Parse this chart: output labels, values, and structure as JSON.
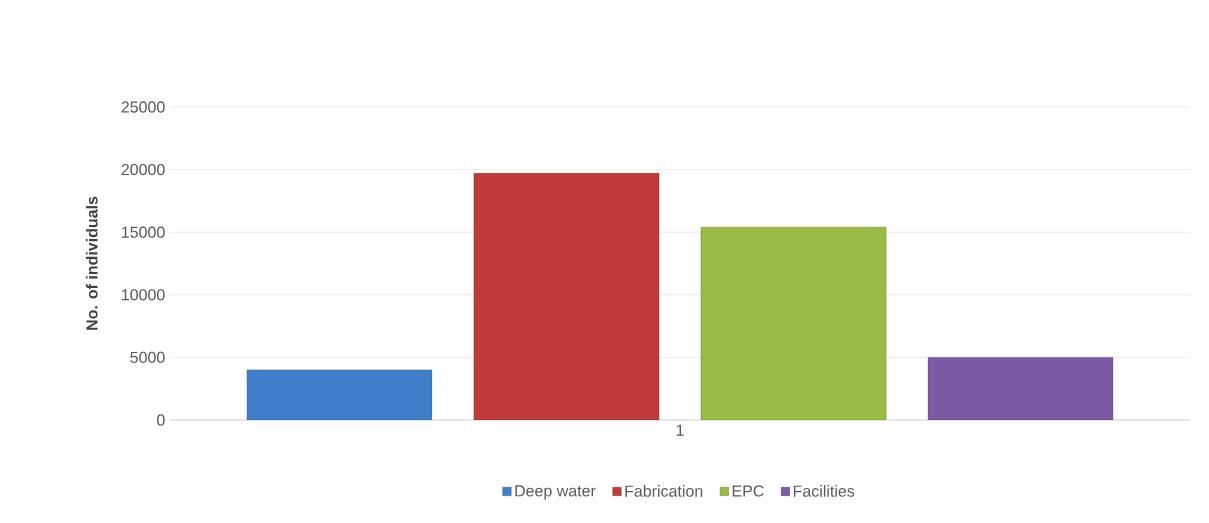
{
  "chart_data": {
    "type": "bar",
    "ylabel": "No. of individuals",
    "categories": [
      "1"
    ],
    "series": [
      {
        "name": "Deep water",
        "color": "#3f7fc9",
        "values": [
          4000
        ]
      },
      {
        "name": "Fabrication",
        "color": "#c03a38",
        "values": [
          19700
        ]
      },
      {
        "name": "EPC",
        "color": "#97bd45",
        "values": [
          15400
        ]
      },
      {
        "name": "Facilities",
        "color": "#7b5aa6",
        "values": [
          5000
        ]
      }
    ],
    "ylim": [
      0,
      25000
    ],
    "yticks": [
      0,
      5000,
      10000,
      15000,
      20000,
      25000
    ],
    "grid": "y",
    "legend": "bottom"
  }
}
